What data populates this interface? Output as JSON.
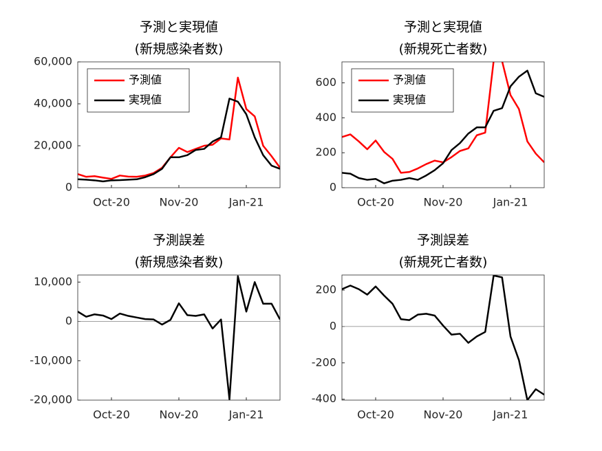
{
  "chart_data": [
    {
      "type": "line",
      "title": [
        "予測と実現値",
        "(新規感染者数)"
      ],
      "x": [
        0,
        1,
        2,
        3,
        4,
        5,
        6,
        7,
        8,
        9,
        10,
        11,
        12,
        13,
        14,
        15,
        16,
        17,
        18,
        19,
        20,
        21,
        22,
        23,
        24
      ],
      "xlim": [
        0,
        24
      ],
      "xticks": [
        {
          "value": 4,
          "label": "Oct-20"
        },
        {
          "value": 12,
          "label": "Nov-20"
        },
        {
          "value": 20,
          "label": "Jan-21"
        }
      ],
      "ylim": [
        0,
        60000
      ],
      "yticks": [
        0,
        {
          "value": 20000,
          "label": "20,000"
        },
        {
          "value": 40000,
          "label": "40,000"
        },
        {
          "value": 60000,
          "label": "60,000"
        }
      ],
      "legend": "northwest",
      "series": [
        {
          "name": "予測値",
          "color": "#ff0000",
          "values": [
            6500,
            5200,
            5500,
            4800,
            4200,
            5800,
            5300,
            5200,
            5800,
            7000,
            9500,
            14500,
            19000,
            17000,
            18500,
            20000,
            20500,
            23500,
            23000,
            52500,
            37500,
            34000,
            20000,
            15000,
            9500
          ]
        },
        {
          "name": "実現値",
          "color": "#000000",
          "values": [
            4000,
            3800,
            3500,
            3000,
            3500,
            3600,
            3800,
            4000,
            5000,
            6500,
            9000,
            14500,
            14500,
            15500,
            18000,
            18500,
            22000,
            24000,
            42500,
            41000,
            35000,
            24000,
            15500,
            10500,
            9000
          ]
        }
      ]
    },
    {
      "type": "line",
      "title": [
        "予測と実現値",
        "(新規死亡者数)"
      ],
      "x": [
        0,
        1,
        2,
        3,
        4,
        5,
        6,
        7,
        8,
        9,
        10,
        11,
        12,
        13,
        14,
        15,
        16,
        17,
        18,
        19,
        20,
        21,
        22,
        23,
        24
      ],
      "xlim": [
        0,
        24
      ],
      "xticks": [
        {
          "value": 4,
          "label": "Oct-20"
        },
        {
          "value": 12,
          "label": "Nov-20"
        },
        {
          "value": 20,
          "label": "Jan-21"
        }
      ],
      "ylim": [
        0,
        720
      ],
      "yticks": [
        0,
        200,
        400,
        600
      ],
      "legend": "northwest",
      "series": [
        {
          "name": "予測値",
          "color": "#ff0000",
          "values": [
            290,
            305,
            265,
            220,
            270,
            205,
            165,
            85,
            90,
            110,
            135,
            155,
            145,
            175,
            210,
            225,
            300,
            315,
            725,
            725,
            530,
            450,
            265,
            195,
            145
          ]
        },
        {
          "name": "実現値",
          "color": "#000000",
          "values": [
            85,
            80,
            55,
            45,
            50,
            25,
            40,
            45,
            55,
            45,
            70,
            100,
            140,
            215,
            255,
            310,
            345,
            345,
            440,
            455,
            580,
            635,
            670,
            540,
            520
          ]
        }
      ]
    },
    {
      "type": "line",
      "title": [
        "予測誤差",
        "(新規感染者数)"
      ],
      "x": [
        0,
        1,
        2,
        3,
        4,
        5,
        6,
        7,
        8,
        9,
        10,
        11,
        12,
        13,
        14,
        15,
        16,
        17,
        18,
        19,
        20,
        21,
        22,
        23,
        24
      ],
      "xlim": [
        0,
        24
      ],
      "xticks": [
        {
          "value": 4,
          "label": "Oct-20"
        },
        {
          "value": 12,
          "label": "Nov-20"
        },
        {
          "value": 20,
          "label": "Jan-21"
        }
      ],
      "ylim": [
        -20000,
        11800
      ],
      "yticks": [
        {
          "value": -20000,
          "label": "-20,000"
        },
        {
          "value": -10000,
          "label": "-10,000"
        },
        0,
        {
          "value": 10000,
          "label": "10,000"
        }
      ],
      "zero_line": true,
      "series": [
        {
          "color": "#000000",
          "values": [
            2500,
            1200,
            1800,
            1500,
            600,
            2000,
            1400,
            1000,
            600,
            500,
            -800,
            400,
            4600,
            1600,
            1400,
            1800,
            -1800,
            500,
            -19800,
            11500,
            2500,
            10000,
            4500,
            4500,
            500
          ]
        }
      ]
    },
    {
      "type": "line",
      "title": [
        "予測誤差",
        "(新規死亡者数)"
      ],
      "x": [
        0,
        1,
        2,
        3,
        4,
        5,
        6,
        7,
        8,
        9,
        10,
        11,
        12,
        13,
        14,
        15,
        16,
        17,
        18,
        19,
        20,
        21,
        22,
        23,
        24
      ],
      "xlim": [
        0,
        24
      ],
      "xticks": [
        {
          "value": 4,
          "label": "Oct-20"
        },
        {
          "value": 12,
          "label": "Nov-20"
        },
        {
          "value": 20,
          "label": "Jan-21"
        }
      ],
      "ylim": [
        -405,
        283
      ],
      "yticks": [
        -400,
        -200,
        0,
        200
      ],
      "zero_line": true,
      "series": [
        {
          "color": "#000000",
          "values": [
            205,
            225,
            205,
            175,
            220,
            170,
            125,
            40,
            35,
            65,
            70,
            60,
            5,
            -45,
            -40,
            -90,
            -55,
            -30,
            280,
            270,
            -55,
            -185,
            -405,
            -345,
            -375
          ]
        }
      ]
    }
  ]
}
